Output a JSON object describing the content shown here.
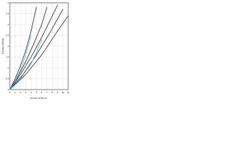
{
  "chart_data": {
    "type": "line",
    "x_label": "Entropy (kJ/kg·K)",
    "y_label": "Enthalpy (MJ/kg)",
    "xlim": [
      0,
      11
    ],
    "xticks": [
      0,
      1,
      2,
      3,
      4,
      5,
      6,
      7,
      8,
      9,
      10,
      11
    ],
    "ylim": [
      0,
      4
    ],
    "yticks": [
      0,
      0.5,
      1,
      1.5,
      2,
      2.5,
      3,
      3.5,
      4
    ],
    "grid": true,
    "series": [
      {
        "color": "#000000",
        "x": [
          0,
          1,
          2,
          3,
          4,
          5
        ],
        "values": [
          0,
          0.5,
          1.1,
          1.8,
          2.7,
          3.8
        ]
      },
      {
        "color": "#000000",
        "x": [
          0,
          1.5,
          3,
          4.5,
          6,
          7
        ],
        "values": [
          0,
          0.6,
          1.3,
          2.1,
          3.0,
          3.8
        ]
      },
      {
        "color": "#000000",
        "x": [
          0,
          2,
          4,
          6,
          8,
          9
        ],
        "values": [
          0,
          0.7,
          1.5,
          2.4,
          3.4,
          3.9
        ]
      },
      {
        "color": "#000000",
        "x": [
          0,
          2.5,
          5,
          7.5,
          10
        ],
        "values": [
          0,
          0.7,
          1.6,
          2.6,
          3.7
        ]
      },
      {
        "color": "#000000",
        "x": [
          0,
          3,
          6,
          9,
          11
        ],
        "values": [
          0,
          0.7,
          1.6,
          2.7,
          3.4
        ]
      },
      {
        "color": "#4aa3d8",
        "x": [
          0,
          1,
          2,
          3,
          4
        ],
        "values": [
          0,
          0.4,
          0.9,
          1.6,
          2.5
        ]
      },
      {
        "color": "#4aa3d8",
        "x": [
          0,
          2,
          4,
          5,
          6
        ],
        "values": [
          0,
          0.5,
          1.2,
          1.7,
          2.3
        ]
      }
    ]
  }
}
